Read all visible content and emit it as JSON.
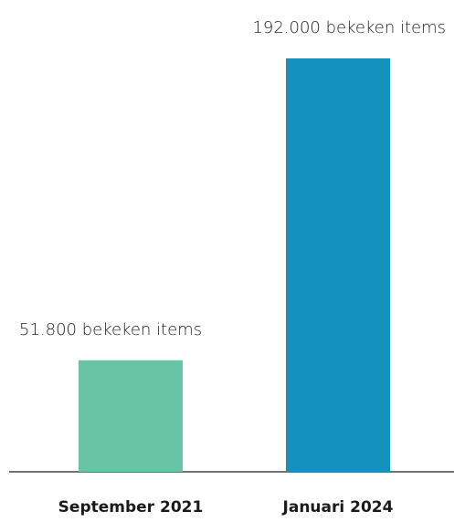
{
  "chart_data": {
    "type": "bar",
    "categories": [
      "September 2021",
      "Januari 2024"
    ],
    "values": [
      51800,
      192000
    ],
    "data_labels": [
      "51.800 bekeken items",
      "192.000 bekeken items"
    ],
    "colors": [
      "#67c5a6",
      "#1492bd"
    ],
    "title": "",
    "xlabel": "",
    "ylabel": "",
    "ylim": [
      0,
      192000
    ],
    "grid": false,
    "legend": "none",
    "baseline_color": "#222222"
  }
}
